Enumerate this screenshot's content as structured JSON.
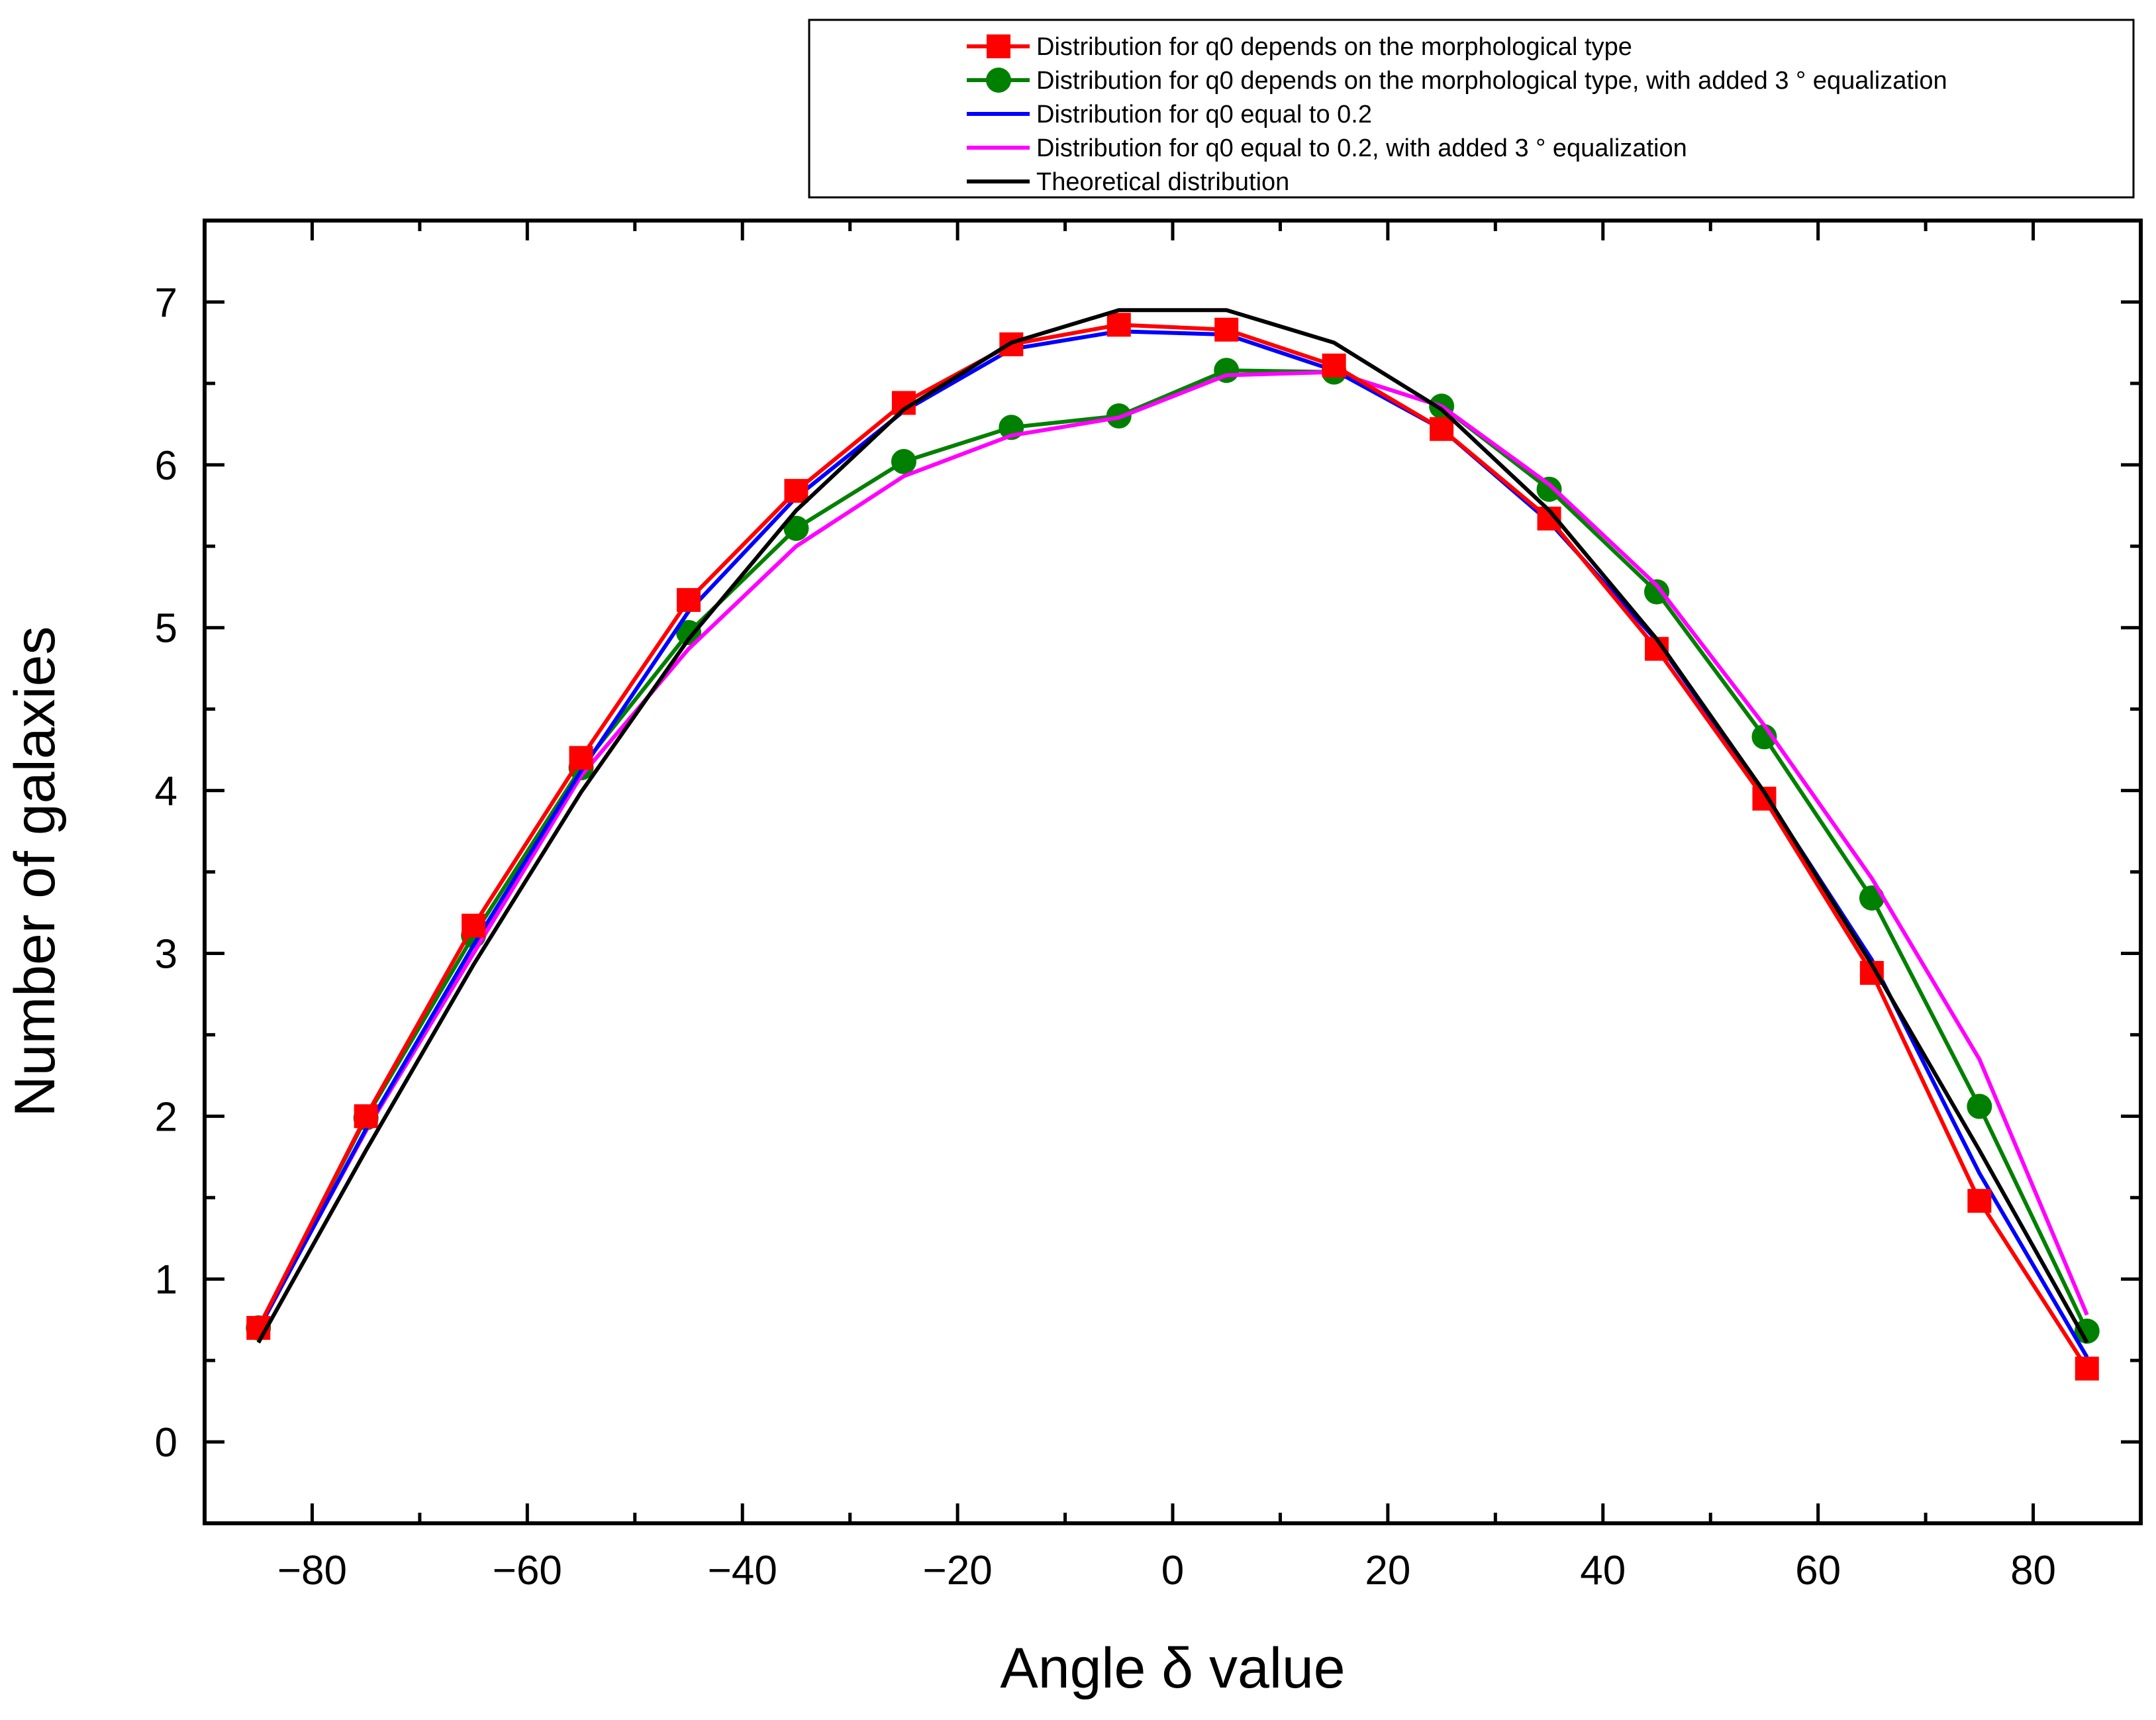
{
  "chart_data": {
    "type": "line",
    "title": "",
    "xlabel": "Angle δ value",
    "ylabel": "Number of galaxies",
    "xlim": [
      -90,
      90
    ],
    "ylim": [
      -0.5,
      7.5
    ],
    "xticks": [
      -80,
      -60,
      -40,
      -20,
      0,
      20,
      40,
      60,
      80
    ],
    "xtick_labels": [
      "−80",
      "−60",
      "−40",
      "−20",
      "0",
      "20",
      "40",
      "60",
      "80"
    ],
    "yticks": [
      0,
      1,
      2,
      3,
      4,
      5,
      6,
      7
    ],
    "ytick_labels": [
      "0",
      "1",
      "2",
      "3",
      "4",
      "5",
      "6",
      "7"
    ],
    "legend_position": "top-right, above plot",
    "series": [
      {
        "name": "Distribution for q0 depends on the morphological type",
        "color": "#ff0000",
        "marker": "square",
        "x": [
          -85,
          -75,
          -65,
          -55,
          -45,
          -35,
          -25,
          -15,
          -5,
          5,
          15,
          25,
          35,
          45,
          55,
          65,
          75,
          85
        ],
        "values": [
          0.7,
          2.0,
          3.17,
          4.2,
          5.17,
          5.84,
          6.38,
          6.74,
          6.86,
          6.83,
          6.61,
          6.22,
          5.67,
          4.87,
          3.95,
          2.88,
          1.48,
          0.45
        ]
      },
      {
        "name": "Distribution for q0 depends on the morphological type, with added 3 ° equalization",
        "color": "#008000",
        "marker": "circle",
        "x": [
          -85,
          -75,
          -65,
          -55,
          -45,
          -35,
          -25,
          -15,
          -5,
          5,
          15,
          25,
          35,
          45,
          55,
          65,
          75,
          85
        ],
        "values": [
          0.7,
          1.99,
          3.11,
          4.14,
          4.97,
          5.61,
          6.02,
          6.23,
          6.3,
          6.58,
          6.57,
          6.36,
          5.85,
          5.22,
          4.33,
          3.34,
          2.06,
          0.68
        ]
      },
      {
        "name": "Distribution for q0 equal to 0.2",
        "color": "#0000ff",
        "marker": "none",
        "x": [
          -85,
          -75,
          -65,
          -55,
          -45,
          -35,
          -25,
          -15,
          -5,
          5,
          15,
          25,
          35,
          45,
          55,
          65,
          75,
          85
        ],
        "values": [
          0.69,
          1.92,
          3.05,
          4.12,
          5.1,
          5.8,
          6.33,
          6.71,
          6.82,
          6.8,
          6.58,
          6.22,
          5.65,
          4.92,
          3.98,
          2.96,
          1.65,
          0.52
        ]
      },
      {
        "name": "Distribution for q0 equal to 0.2, with added 3 ° equalization",
        "color": "#ff00ff",
        "marker": "none",
        "x": [
          -85,
          -75,
          -65,
          -55,
          -45,
          -35,
          -25,
          -15,
          -5,
          5,
          15,
          25,
          35,
          45,
          55,
          65,
          75,
          85
        ],
        "values": [
          0.7,
          1.91,
          3.0,
          4.09,
          4.87,
          5.5,
          5.93,
          6.18,
          6.29,
          6.55,
          6.57,
          6.36,
          5.88,
          5.26,
          4.4,
          3.46,
          2.35,
          0.78
        ]
      },
      {
        "name": "Theoretical distribution",
        "color": "#000000",
        "marker": "none",
        "x": [
          -85,
          -75,
          -65,
          -55,
          -45,
          -35,
          -25,
          -15,
          -5,
          5,
          15,
          25,
          35,
          45,
          55,
          65,
          75,
          85
        ],
        "values": [
          0.61,
          1.79,
          2.93,
          3.99,
          4.93,
          5.72,
          6.34,
          6.75,
          6.95,
          6.95,
          6.75,
          6.34,
          5.72,
          4.93,
          3.99,
          2.93,
          1.79,
          0.61
        ]
      }
    ]
  }
}
